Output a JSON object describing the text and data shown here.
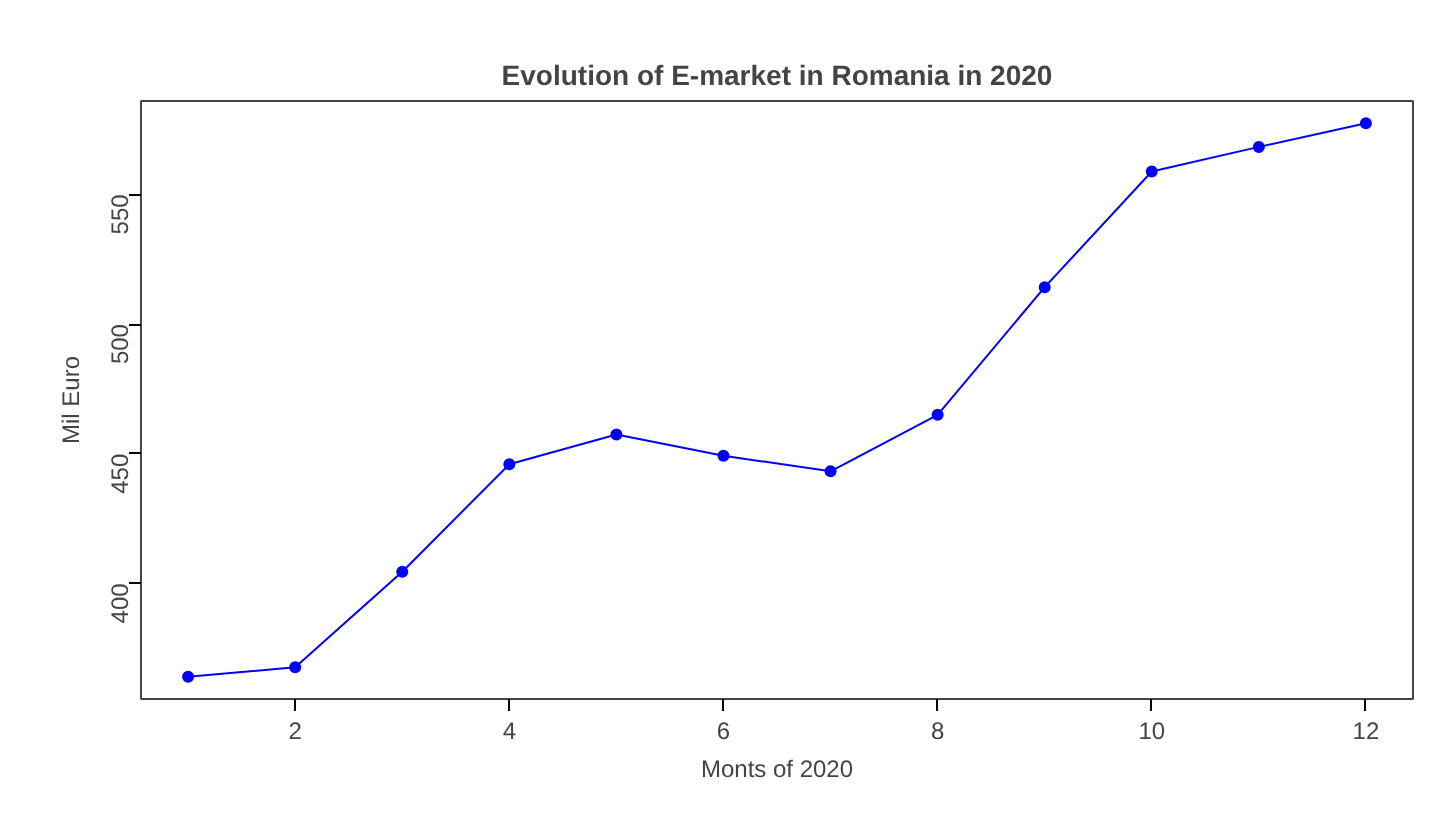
{
  "chart_data": {
    "type": "line",
    "title": "Evolution of E-market in Romania in 2020",
    "xlabel": "Monts of 2020",
    "ylabel": "Mil Euro",
    "x": [
      1,
      2,
      3,
      4,
      5,
      6,
      7,
      8,
      9,
      10,
      11,
      12
    ],
    "series": [
      {
        "color": "#0000ff",
        "values": [
          364,
          367.6,
          404.5,
          445.9,
          457.4,
          449.2,
          443.2,
          465,
          514.2,
          558.8,
          568.3,
          577.4
        ]
      }
    ],
    "xlim": [
      0.56,
      12.44
    ],
    "ylim": [
      355.4,
      586
    ],
    "xticks": [
      2,
      4,
      6,
      8,
      10,
      12
    ],
    "yticks": [
      400,
      450,
      500,
      550
    ],
    "marker": "circle",
    "line_style": "solid",
    "grid": false
  }
}
